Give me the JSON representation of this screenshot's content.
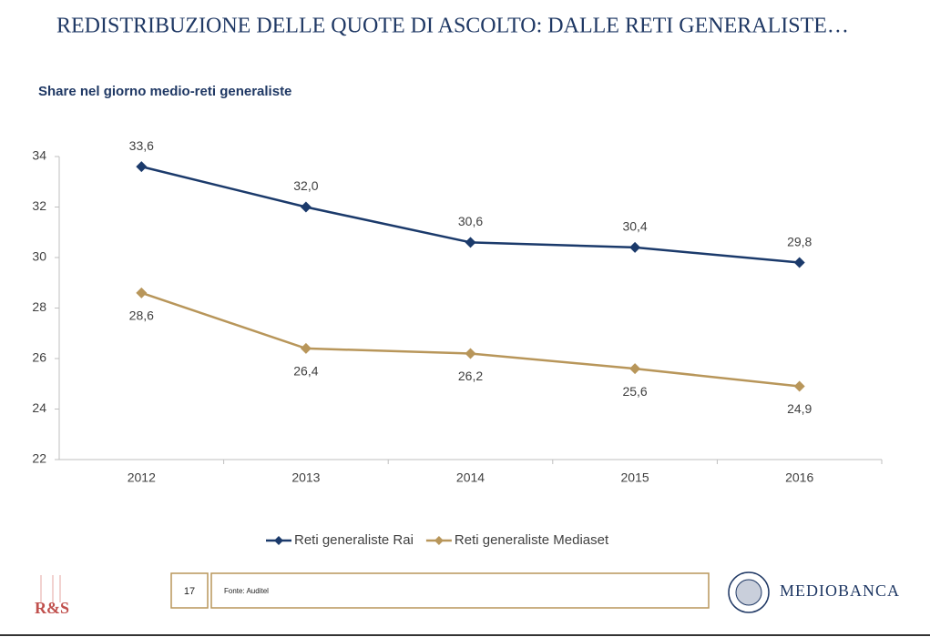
{
  "slide": {
    "title": "REDISTRIBUZIONE DELLE QUOTE DI ASCOLTO: DALLE RETI GENERALISTE…",
    "page_number": 17,
    "source": "Fonte: Auditel",
    "logo_left": "R&S",
    "logo_right": "MEDIOBANCA"
  },
  "chart_data": {
    "type": "line",
    "title": "Share nel giorno medio-reti generaliste",
    "categories": [
      "2012",
      "2013",
      "2014",
      "2015",
      "2016"
    ],
    "series": [
      {
        "name": "Reti generaliste Rai",
        "color": "#1b3a6b",
        "values": [
          33.6,
          32.0,
          30.6,
          30.4,
          29.8
        ],
        "value_labels": [
          "33,6",
          "32,0",
          "30,6",
          "30,4",
          "29,8"
        ]
      },
      {
        "name": "Reti generaliste Mediaset",
        "color": "#b8965a",
        "values": [
          28.6,
          26.4,
          26.2,
          25.6,
          24.9
        ],
        "value_labels": [
          "28,6",
          "26,4",
          "26,2",
          "25,6",
          "24,9"
        ]
      }
    ],
    "ylim": [
      22,
      34
    ],
    "yticks": [
      22,
      24,
      26,
      28,
      30,
      32,
      34
    ],
    "grid": false,
    "legend": "bottom"
  }
}
